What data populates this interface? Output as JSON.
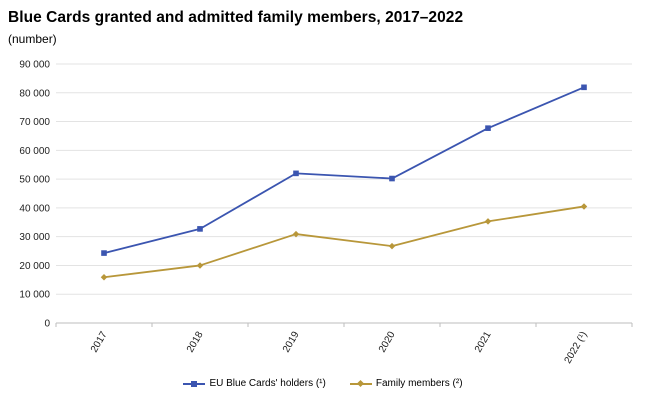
{
  "chart_data": {
    "type": "line",
    "title": "Blue Cards granted and admitted family members, 2017–2022",
    "subtitle": "(number)",
    "categories": [
      "2017",
      "2018",
      "2019",
      "2020",
      "2021",
      "2022 (¹)"
    ],
    "series": [
      {
        "name": "EU Blue Cards' holders (¹)",
        "color": "#3b55b0",
        "marker": "square",
        "values": [
          24300,
          32700,
          52000,
          50200,
          67700,
          81900
        ]
      },
      {
        "name": "Family members (²)",
        "color": "#b8973a",
        "marker": "diamond",
        "values": [
          15900,
          20000,
          30900,
          26700,
          35300,
          40500
        ]
      }
    ],
    "ylim": [
      0,
      90000
    ],
    "yticks": [
      0,
      10000,
      20000,
      30000,
      40000,
      50000,
      60000,
      70000,
      80000,
      90000
    ],
    "ytick_labels": [
      "0",
      "10 000",
      "20 000",
      "30 000",
      "40 000",
      "50 000",
      "60 000",
      "70 000",
      "80 000",
      "90 000"
    ],
    "grid": true,
    "legend": "bottom-center"
  }
}
